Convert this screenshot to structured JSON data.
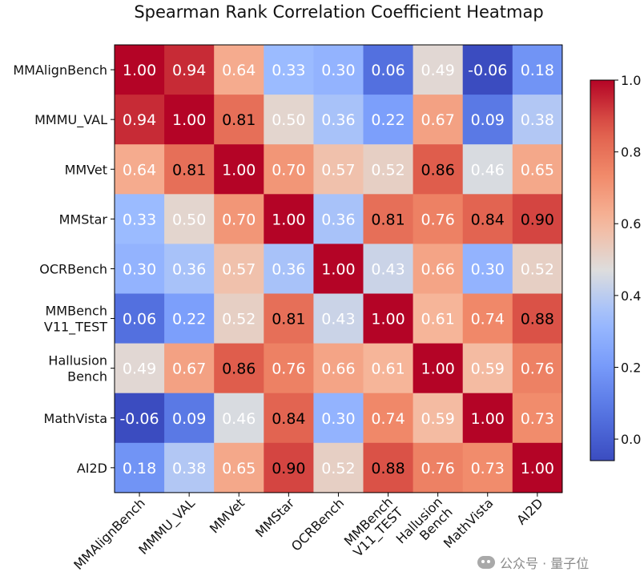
{
  "chart_data": {
    "type": "heatmap",
    "title": "Spearman Rank Correlation Coefficient Heatmap",
    "rows": [
      [
        "MMAlignBench"
      ],
      [
        "MMMU_VAL"
      ],
      [
        "MMVet"
      ],
      [
        "MMStar"
      ],
      [
        "OCRBench"
      ],
      [
        "MMBench",
        "V11_TEST"
      ],
      [
        "Hallusion",
        "Bench"
      ],
      [
        "MathVista"
      ],
      [
        "AI2D"
      ]
    ],
    "columns": [
      [
        "MMAlignBench"
      ],
      [
        "MMMU_VAL"
      ],
      [
        "MMVet"
      ],
      [
        "MMStar"
      ],
      [
        "OCRBench"
      ],
      [
        "MMBench",
        "V11_TEST"
      ],
      [
        "Hallusion",
        "Bench"
      ],
      [
        "MathVista"
      ],
      [
        "AI2D"
      ]
    ],
    "values": [
      [
        1.0,
        0.94,
        0.64,
        0.33,
        0.3,
        0.06,
        0.49,
        -0.06,
        0.18
      ],
      [
        0.94,
        1.0,
        0.81,
        0.5,
        0.36,
        0.22,
        0.67,
        0.09,
        0.38
      ],
      [
        0.64,
        0.81,
        1.0,
        0.7,
        0.57,
        0.52,
        0.86,
        0.46,
        0.65
      ],
      [
        0.33,
        0.5,
        0.7,
        1.0,
        0.36,
        0.81,
        0.76,
        0.84,
        0.9
      ],
      [
        0.3,
        0.36,
        0.57,
        0.36,
        1.0,
        0.43,
        0.66,
        0.3,
        0.52
      ],
      [
        0.06,
        0.22,
        0.52,
        0.81,
        0.43,
        1.0,
        0.61,
        0.74,
        0.88
      ],
      [
        0.49,
        0.67,
        0.86,
        0.76,
        0.66,
        0.61,
        1.0,
        0.59,
        0.76
      ],
      [
        -0.06,
        0.09,
        0.46,
        0.84,
        0.3,
        0.74,
        0.59,
        1.0,
        0.73
      ],
      [
        0.18,
        0.38,
        0.65,
        0.9,
        0.52,
        0.88,
        0.76,
        0.73,
        1.0
      ]
    ],
    "colormap": "coolwarm",
    "vmin": -0.06,
    "vmax": 1.0,
    "colorbar_ticks": [
      "0.0",
      "0.2",
      "0.4",
      "0.6",
      "0.8",
      "1.0"
    ],
    "colorbar_tick_values": [
      0.0,
      0.2,
      0.4,
      0.6,
      0.8,
      1.0
    ],
    "annotation_colors": {
      "dark": "#000000",
      "light": "#ffffff"
    }
  },
  "watermark": {
    "text": "公众号 · 量子位"
  }
}
